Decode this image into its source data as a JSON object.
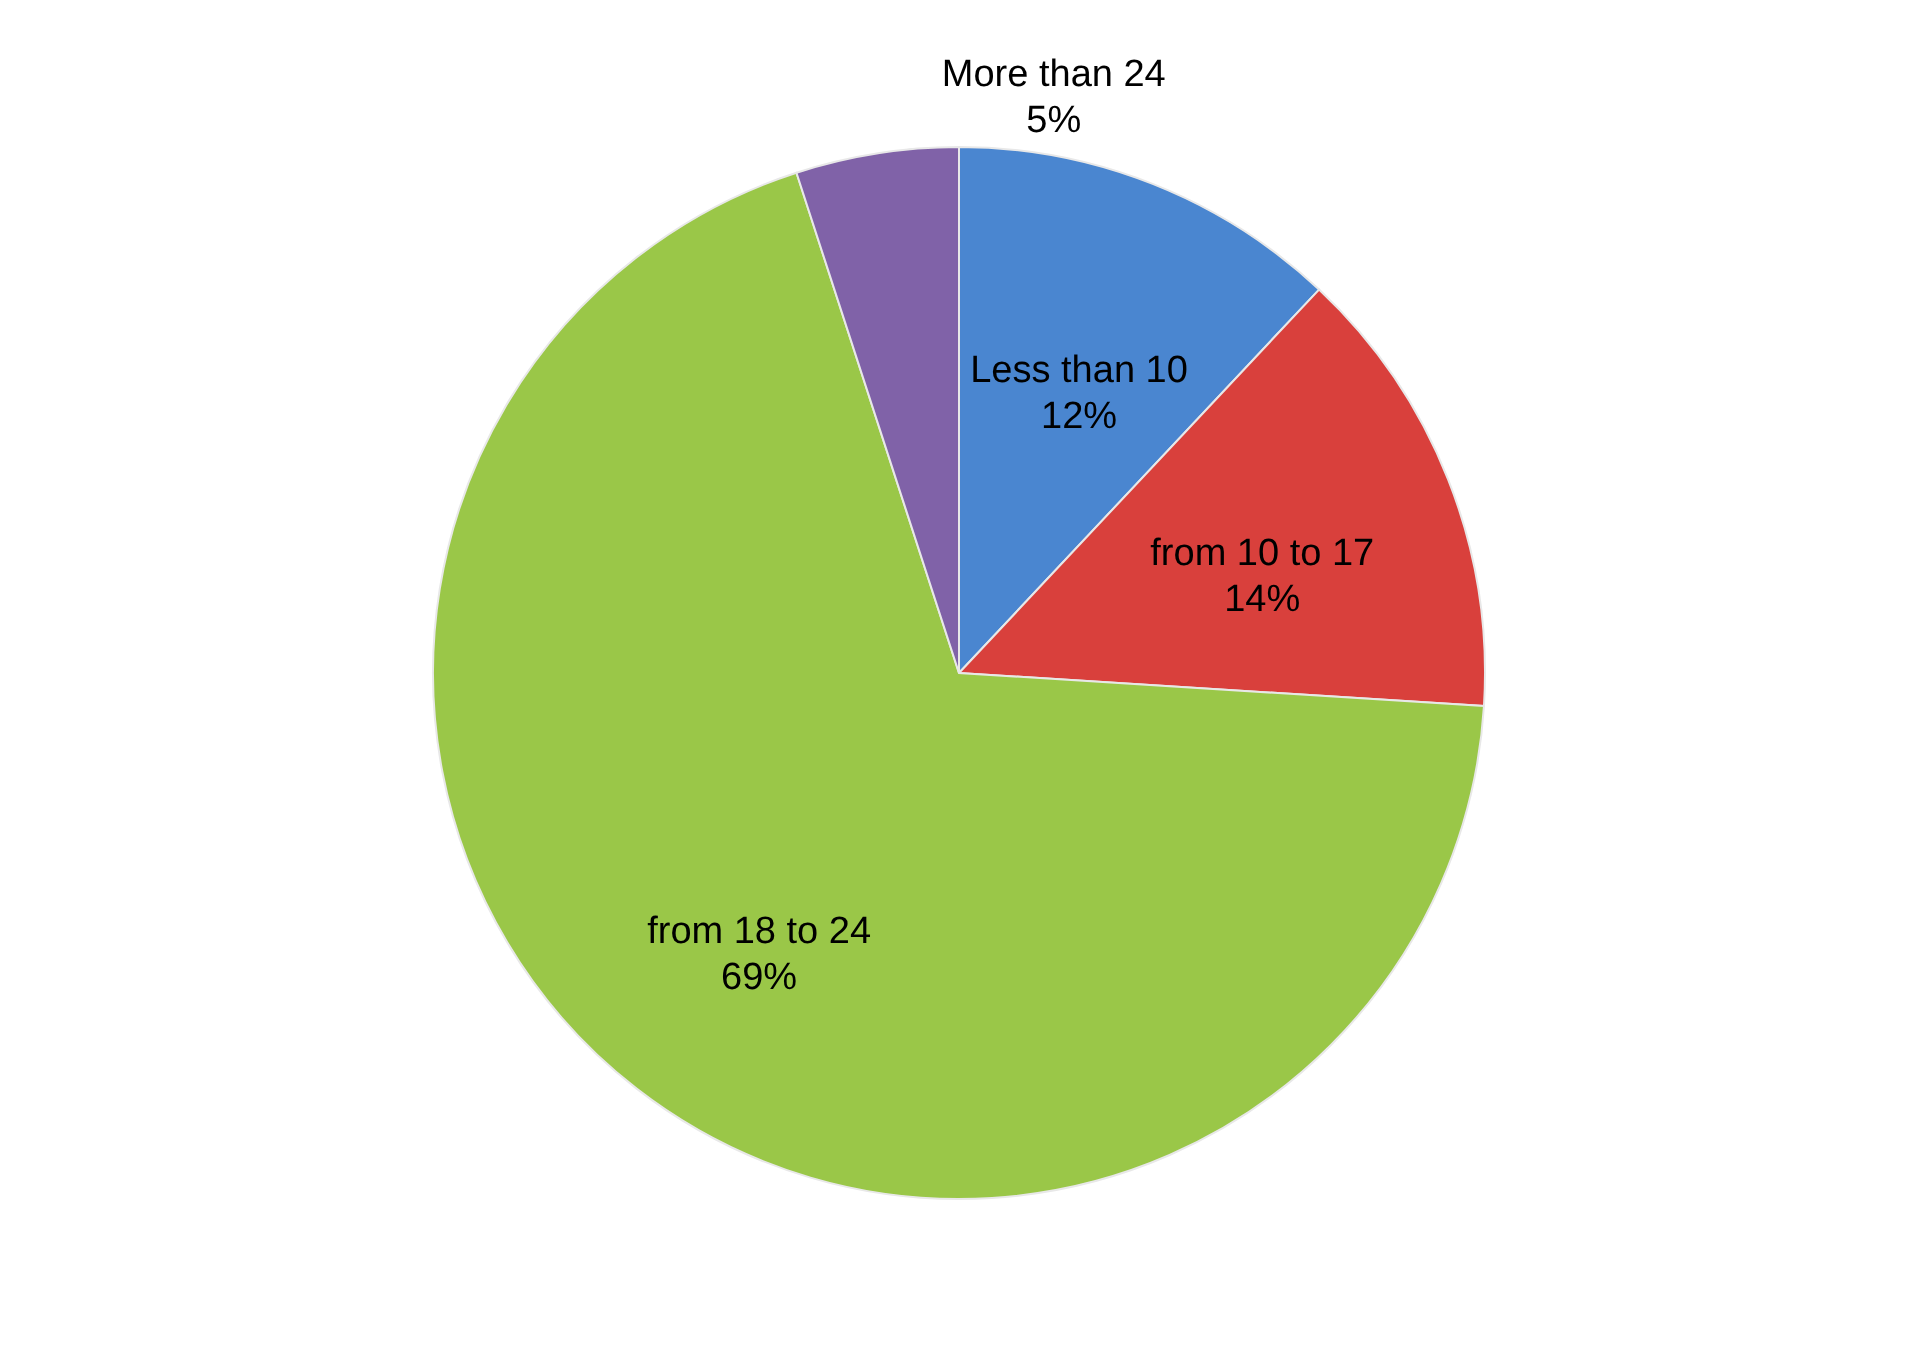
{
  "chart_data": {
    "type": "pie",
    "categories": [
      "Less than 10",
      "from 10 to 17",
      "from 18 to 24",
      "More than 24"
    ],
    "values": [
      12,
      14,
      69,
      5
    ],
    "value_labels": [
      "12%",
      "14%",
      "69%",
      "5%"
    ],
    "colors": [
      "#4a86d0",
      "#d9403c",
      "#9ac748",
      "#8062a8"
    ]
  }
}
